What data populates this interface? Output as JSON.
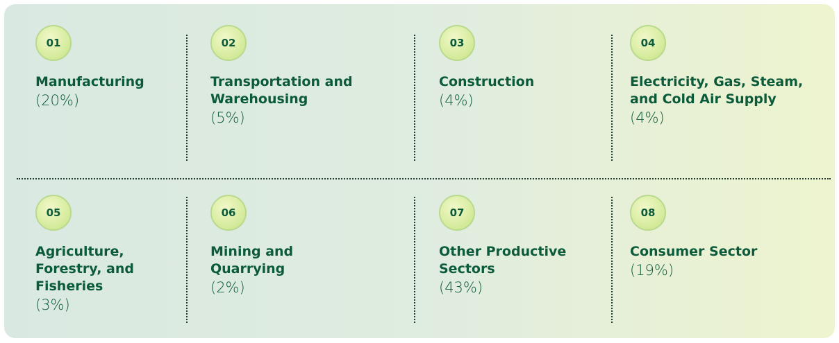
{
  "items": [
    {
      "number": "01",
      "title": "Manufacturing",
      "share": "(20%)"
    },
    {
      "number": "02",
      "title": "Transportation and Warehousing",
      "share": "(5%)"
    },
    {
      "number": "03",
      "title": "Construction",
      "share": "(4%)"
    },
    {
      "number": "04",
      "title": "Electricity, Gas, Steam, and Cold Air Supply",
      "share": "(4%)"
    },
    {
      "number": "05",
      "title": "Agriculture, Forestry, and Fisheries",
      "share": "(3%)"
    },
    {
      "number": "06",
      "title": "Mining and Quarrying",
      "share": "(2%)"
    },
    {
      "number": "07",
      "title": "Other Productive Sectors",
      "share": "(43%)"
    },
    {
      "number": "08",
      "title": "Consumer Sector",
      "share": "(19%)"
    }
  ]
}
